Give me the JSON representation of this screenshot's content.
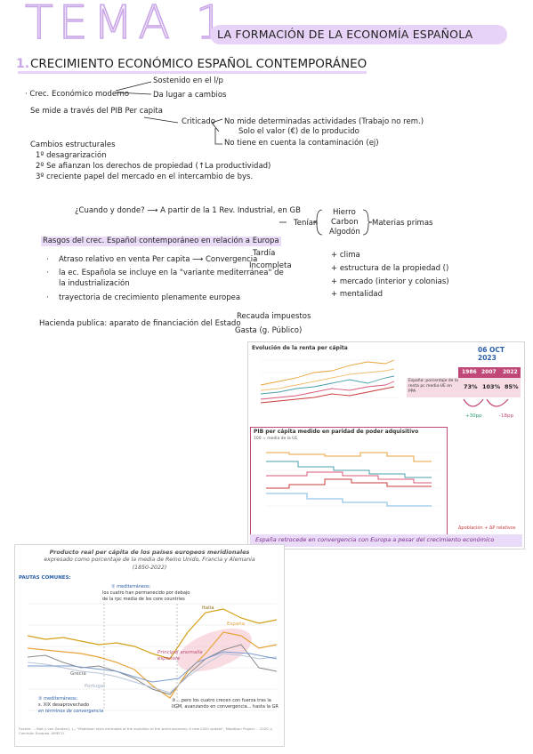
{
  "header": {
    "tema": "TEMA 1",
    "subtitle": "LA FORMACIÓN DE LA ECONOMÍA ESPAÑOLA",
    "section_number": "1.",
    "section_title": "CRECIMIENTO ECONÓMICO ESPAÑOL CONTEMPORÁNEO"
  },
  "notes": {
    "crec_moderno": "· Crec. Económico moderno",
    "sostenido": "Sostenido en el l/p",
    "lugar_cambios": "Da lugar a cambios",
    "se_mide": "Se mide a través del PIB Per capita",
    "criticado": "Criticado",
    "crit1": "No mide determinadas actividades (Trabajo no rem.)",
    "crit2": "Solo el valor (€) de lo producido",
    "crit3": "No tiene en cuenta la contaminación (ej)",
    "cambios_title": "Cambios estructurales",
    "cambio1": "1º desagrarización",
    "cambio2": "2º Se afianzan los derechos de propiedad (↑La productividad)",
    "cambio3": "3º creciente papel del mercado en el intercambio de bys.",
    "cuando": "¿Cuando y donde? ⟶  A partir de la 1 Rev. Industrial, en GB",
    "tenian": "Tenían",
    "hierro": "Hierro",
    "carbon": "Carbon",
    "algodon": "Algodón",
    "materias": "Materias primas",
    "rasgos": "Rasgos del crec. Español contemporáneo en relación a Europa",
    "atraso": "Atraso relativo en venta Per capita ⟶ Convergencia",
    "tardia": "Tardía",
    "incompleta": "Incompleta",
    "variante1": "la ec. Española se incluye en la \"variante mediterránea\" de",
    "variante2": "la industrialización",
    "trayectoria": "trayectoria de crecimiento plenamente europea",
    "clima": "+ clima",
    "estructura": "+ estructura de la propiedad ()",
    "mercado": "+ mercado (interior y colonias)",
    "mentalidad": "+ mentalidad",
    "hacienda": "Hacienda publica: aparato de financiación del Estado",
    "recauda": "Recauda impuestos",
    "gasta": "Gasta (g. Público)"
  },
  "panel1": {
    "title": "Evolución de la renta per cápita",
    "date": "06 OCT 2023",
    "table_headers": [
      "1986",
      "2007",
      "2022"
    ],
    "row_label": "España: porcentaje de la renta pc media-UE en PPA",
    "row_values": [
      "73%",
      "103%",
      "85%"
    ],
    "delta_up": "+30pp",
    "delta_down": "-18pp",
    "chart2_title": "PIB per cápita medido en paridad de poder adquisitivo",
    "chart2_sub": "100 = media de la UE",
    "footer": "España retrocede en convergencia con Europa a pesar del crecimiento económico",
    "side_note": "Δpoblación + ΔP relativos"
  },
  "panel2": {
    "title_line1": "Producto real per cápita de los países europeos meridionales",
    "title_line2": "expresado como porcentaje de la media de Reino Unido, Francia y Alemania",
    "title_line3": "(1850-2022)",
    "pautas": "PAUTAS COMUNES:",
    "note1a": "① mediterráneos:",
    "note1b": "los cuatro han permanecido por debajo",
    "note1c": "de la rpc media de los core countries",
    "note2a": "② mediterráneos:",
    "note2b": "s. XIX desaprovechado",
    "note2c": "en términos de convergencia",
    "note3a": "③ ...pero los cuatro crecen con fuerza tras la",
    "note3b": "IIGM, avanzando en convergencia... hasta la GR",
    "anomalia": "Principal anomalía española",
    "label_italia": "Italia",
    "label_espana": "España",
    "label_grecia": "Grecia",
    "label_portugal": "Portugal",
    "source": "Fuente: ... Bolt y van Zanden J. L., \"Maddison style estimates of the evolution of the world economy. A new 2020 update\", Maddison Project ... 2020, y Comisión Europea, AMECO."
  },
  "colors": {
    "accent": "#c9a7e8",
    "highlight": "#eadcf8",
    "panel_pink": "#b0396a",
    "line_orange": "#e8a33a",
    "line_gold": "#d4a017"
  }
}
